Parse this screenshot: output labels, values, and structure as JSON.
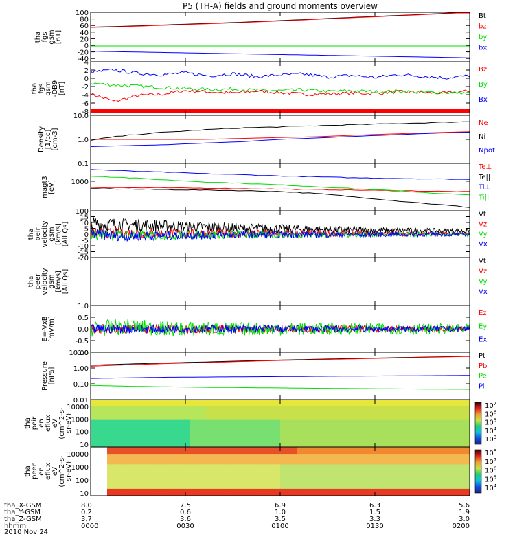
{
  "title": "P5 (TH-A) fields and ground moments overview",
  "chart_data": [
    {
      "id": "p1",
      "type": "line",
      "ylabel": [
        "tha",
        "fgs",
        "gsm",
        "[nT]"
      ],
      "ylim": [
        -50,
        100
      ],
      "yticks": [
        "100",
        "80",
        "60",
        "40",
        "20",
        "0",
        "-20",
        "-40"
      ],
      "series": [
        {
          "name": "Bt",
          "color": "#000000",
          "values": [
            55,
            58,
            62,
            66,
            70,
            75,
            80,
            85,
            90,
            95,
            101
          ]
        },
        {
          "name": "bz",
          "color": "#ff0000",
          "values": [
            54,
            57,
            61,
            65,
            69,
            74,
            79,
            84,
            89,
            94,
            100
          ]
        },
        {
          "name": "by",
          "color": "#00dd00",
          "values": [
            -2,
            -2,
            -2,
            -2,
            -2,
            -2,
            -2,
            -2,
            -2,
            -2,
            -2
          ]
        },
        {
          "name": "bx",
          "color": "#0000ff",
          "values": [
            -18,
            -20,
            -22,
            -24,
            -26,
            -28,
            -30,
            -32,
            -34,
            -36,
            -38
          ]
        }
      ]
    },
    {
      "id": "p2",
      "type": "line",
      "ylabel": [
        "tha",
        "fgs",
        "gsm",
        "-DB9",
        "[nT]"
      ],
      "ylim": [
        -9,
        4
      ],
      "yticks": [
        "4",
        "2",
        "0",
        "-2",
        "-4",
        "-6",
        "-8"
      ],
      "series": [
        {
          "name": "Bz",
          "color": "#ff0000",
          "values": [
            -3.8,
            -5.6,
            -4.2,
            -3.9,
            -3.0,
            -3.3,
            -3.6,
            -3.1,
            -3.5,
            -3.9,
            -3.8,
            -3.6,
            -3.7,
            -3.3,
            -3.5,
            -3.6,
            -3.1
          ]
        },
        {
          "name": "By",
          "color": "#00dd00",
          "values": [
            -1.2,
            -1.6,
            -1.9,
            -2.2,
            -2.5,
            -2.7,
            -2.6,
            -2.9,
            -3.0,
            -2.8,
            -3.2,
            -3.0,
            -3.3,
            -3.1,
            -3.4,
            -3.5,
            -3.6
          ]
        },
        {
          "name": "Bx",
          "color": "#0000ff",
          "values": [
            1.5,
            2.0,
            1.2,
            0.9,
            1.3,
            0.6,
            1.1,
            0.4,
            0.8,
            1.0,
            0.3,
            0.7,
            0.2,
            0.9,
            0.5,
            0.1,
            0.6
          ]
        }
      ]
    },
    {
      "id": "p3",
      "type": "line",
      "scale": "log",
      "ylabel": [
        "Density",
        "[1/cc]",
        "[cm-3]"
      ],
      "ylim": [
        0.1,
        10
      ],
      "yticks": [
        "10.0",
        "1.0",
        "0.1"
      ],
      "series": [
        {
          "name": "Ne",
          "color": "#ff0000",
          "values": [
            1.0,
            1.0,
            1.0,
            1.0,
            1.1,
            1.2,
            1.3,
            1.5,
            1.7,
            1.9,
            2.1
          ]
        },
        {
          "name": "Ni",
          "color": "#000000",
          "values": [
            0.9,
            1.5,
            2.0,
            2.5,
            3.0,
            3.3,
            3.7,
            4.1,
            4.5,
            5.0,
            5.5
          ]
        },
        {
          "name": "Npot",
          "color": "#0000ff",
          "values": [
            0.5,
            0.55,
            0.6,
            0.7,
            0.8,
            1.0,
            1.15,
            1.35,
            1.55,
            1.8,
            2.0
          ]
        }
      ]
    },
    {
      "id": "p4",
      "type": "line",
      "scale": "log",
      "ylabel": [
        "magt3",
        "[eV]"
      ],
      "ylim": [
        100,
        4000
      ],
      "yticks": [
        "1000",
        "100"
      ],
      "series": [
        {
          "name": "Te⊥",
          "color": "#ff0000",
          "values": [
            620,
            600,
            590,
            580,
            560,
            540,
            520,
            500,
            480,
            460,
            440
          ]
        },
        {
          "name": "Te||",
          "color": "#000000",
          "values": [
            560,
            540,
            520,
            500,
            480,
            450,
            380,
            290,
            220,
            170,
            130
          ]
        },
        {
          "name": "Ti⊥",
          "color": "#0000ff",
          "values": [
            2500,
            2200,
            2000,
            1800,
            1650,
            1500,
            1400,
            1300,
            1250,
            1200,
            1150
          ]
        },
        {
          "name": "Ti||",
          "color": "#00dd00",
          "values": [
            1500,
            1300,
            1100,
            950,
            850,
            750,
            650,
            550,
            480,
            400,
            340
          ]
        }
      ]
    },
    {
      "id": "p5",
      "type": "line",
      "ylabel": [
        "tha",
        "peir",
        "velocity",
        "gsm",
        "[km/s]",
        "[All Qs]"
      ],
      "ylim": [
        -20,
        20
      ],
      "yticks": [
        "15",
        "10",
        "5",
        "0",
        "-5",
        "-10",
        "-15",
        "-20"
      ],
      "series": [
        {
          "name": "Vt",
          "color": "#000000",
          "values": [
            9,
            8,
            7,
            6,
            5,
            4.5,
            4,
            3.5,
            3,
            2.8,
            2.6
          ]
        },
        {
          "name": "Vz",
          "color": "#ff0000",
          "values": [
            1,
            1,
            0.5,
            0.5,
            0.5,
            0.5,
            0.4,
            0.4,
            0.3,
            0.3,
            0.3
          ]
        },
        {
          "name": "Vy",
          "color": "#00dd00",
          "values": [
            0,
            -1,
            -1,
            -0.5,
            -0.5,
            -0.4,
            -0.4,
            -0.3,
            -0.3,
            -0.3,
            -0.3
          ]
        },
        {
          "name": "Vx",
          "color": "#0000ff",
          "values": [
            0,
            -2,
            -1,
            -1,
            -0.5,
            -0.5,
            -0.4,
            -0.4,
            -0.3,
            -0.3,
            -0.3
          ]
        }
      ]
    },
    {
      "id": "p6",
      "type": "line",
      "ylabel": [
        "tha",
        "peer",
        "velocity",
        "gsm",
        "[km/s]",
        "[All Qs]"
      ],
      "series": [
        {
          "name": "Vt",
          "color": "#000000"
        },
        {
          "name": "Vz",
          "color": "#ff0000"
        },
        {
          "name": "Vy",
          "color": "#00dd00"
        },
        {
          "name": "Vx",
          "color": "#0000ff"
        }
      ]
    },
    {
      "id": "p7",
      "type": "line",
      "ylabel": [
        "E=-VxB",
        "[mV/m]"
      ],
      "ylim": [
        -1.0,
        1.0
      ],
      "yticks": [
        "1.0",
        "0.5",
        "0.0",
        "-0.5",
        "-1.0"
      ],
      "series": [
        {
          "name": "Ez",
          "color": "#ff0000",
          "values": [
            0,
            0,
            0,
            0,
            0,
            0,
            0,
            0,
            0,
            0,
            0
          ]
        },
        {
          "name": "Ey",
          "color": "#00dd00",
          "values": [
            0,
            0.1,
            0,
            0,
            0,
            0,
            0,
            0,
            0,
            0,
            0
          ]
        },
        {
          "name": "Ex",
          "color": "#0000ff",
          "values": [
            0,
            0,
            0,
            0,
            0,
            0,
            0,
            0,
            0,
            0,
            0
          ]
        }
      ]
    },
    {
      "id": "p8",
      "type": "line",
      "scale": "log",
      "ylabel": [
        "Pressure",
        "[nPa]"
      ],
      "ylim": [
        0.01,
        10
      ],
      "yticks": [
        "10.00",
        "1.00",
        "0.10",
        "0.01"
      ],
      "series": [
        {
          "name": "Pt",
          "color": "#000000",
          "values": [
            1.5,
            1.8,
            2.1,
            2.4,
            2.8,
            3.2,
            3.6,
            4.0,
            4.5,
            5.0,
            5.6
          ]
        },
        {
          "name": "Pb",
          "color": "#ff0000",
          "values": [
            1.3,
            1.6,
            1.9,
            2.2,
            2.6,
            3.0,
            3.4,
            3.8,
            4.3,
            4.8,
            5.4
          ]
        },
        {
          "name": "Pe",
          "color": "#00dd00",
          "values": [
            0.08,
            0.07,
            0.065,
            0.06,
            0.058,
            0.055,
            0.052,
            0.05,
            0.048,
            0.046,
            0.045
          ]
        },
        {
          "name": "Pi",
          "color": "#0000ff",
          "values": [
            0.22,
            0.24,
            0.26,
            0.27,
            0.28,
            0.29,
            0.3,
            0.31,
            0.32,
            0.33,
            0.34
          ]
        }
      ]
    },
    {
      "id": "p9",
      "type": "heatmap",
      "ylabel": [
        "tha",
        "peir",
        "en",
        "eflux",
        "eV",
        "(cm^2-s-",
        "sr-eV)"
      ],
      "yticks": [
        "10000",
        "1000",
        "100",
        "10"
      ],
      "colorbar_ticks": [
        "10^7",
        "10^6",
        "10^5",
        "10^4",
        "10^3"
      ]
    },
    {
      "id": "p10",
      "type": "heatmap",
      "ylabel": [
        "tha",
        "peer",
        "en",
        "eflux",
        "eV",
        "(cm^2-s-",
        "sr-eV)"
      ],
      "yticks": [
        "10000",
        "1000",
        "100",
        "10"
      ],
      "colorbar_ticks": [
        "10^8",
        "10^7",
        "10^6",
        "10^5",
        "10^4"
      ]
    }
  ],
  "xaxis": {
    "rows": [
      {
        "label": "tha_X-GSM",
        "values": [
          "8.0",
          "7.5",
          "6.9",
          "6.3",
          "5.6"
        ]
      },
      {
        "label": "tha_Y-GSM",
        "values": [
          "0.2",
          "0.6",
          "1.0",
          "1.5",
          "1.9"
        ]
      },
      {
        "label": "tha_Z-GSM",
        "values": [
          "3.7",
          "3.6",
          "3.5",
          "3.3",
          "3.0"
        ]
      },
      {
        "label": "hhmm",
        "values": [
          "0000",
          "0030",
          "0100",
          "0130",
          "0200"
        ]
      }
    ],
    "date": "2010 Nov 24"
  }
}
